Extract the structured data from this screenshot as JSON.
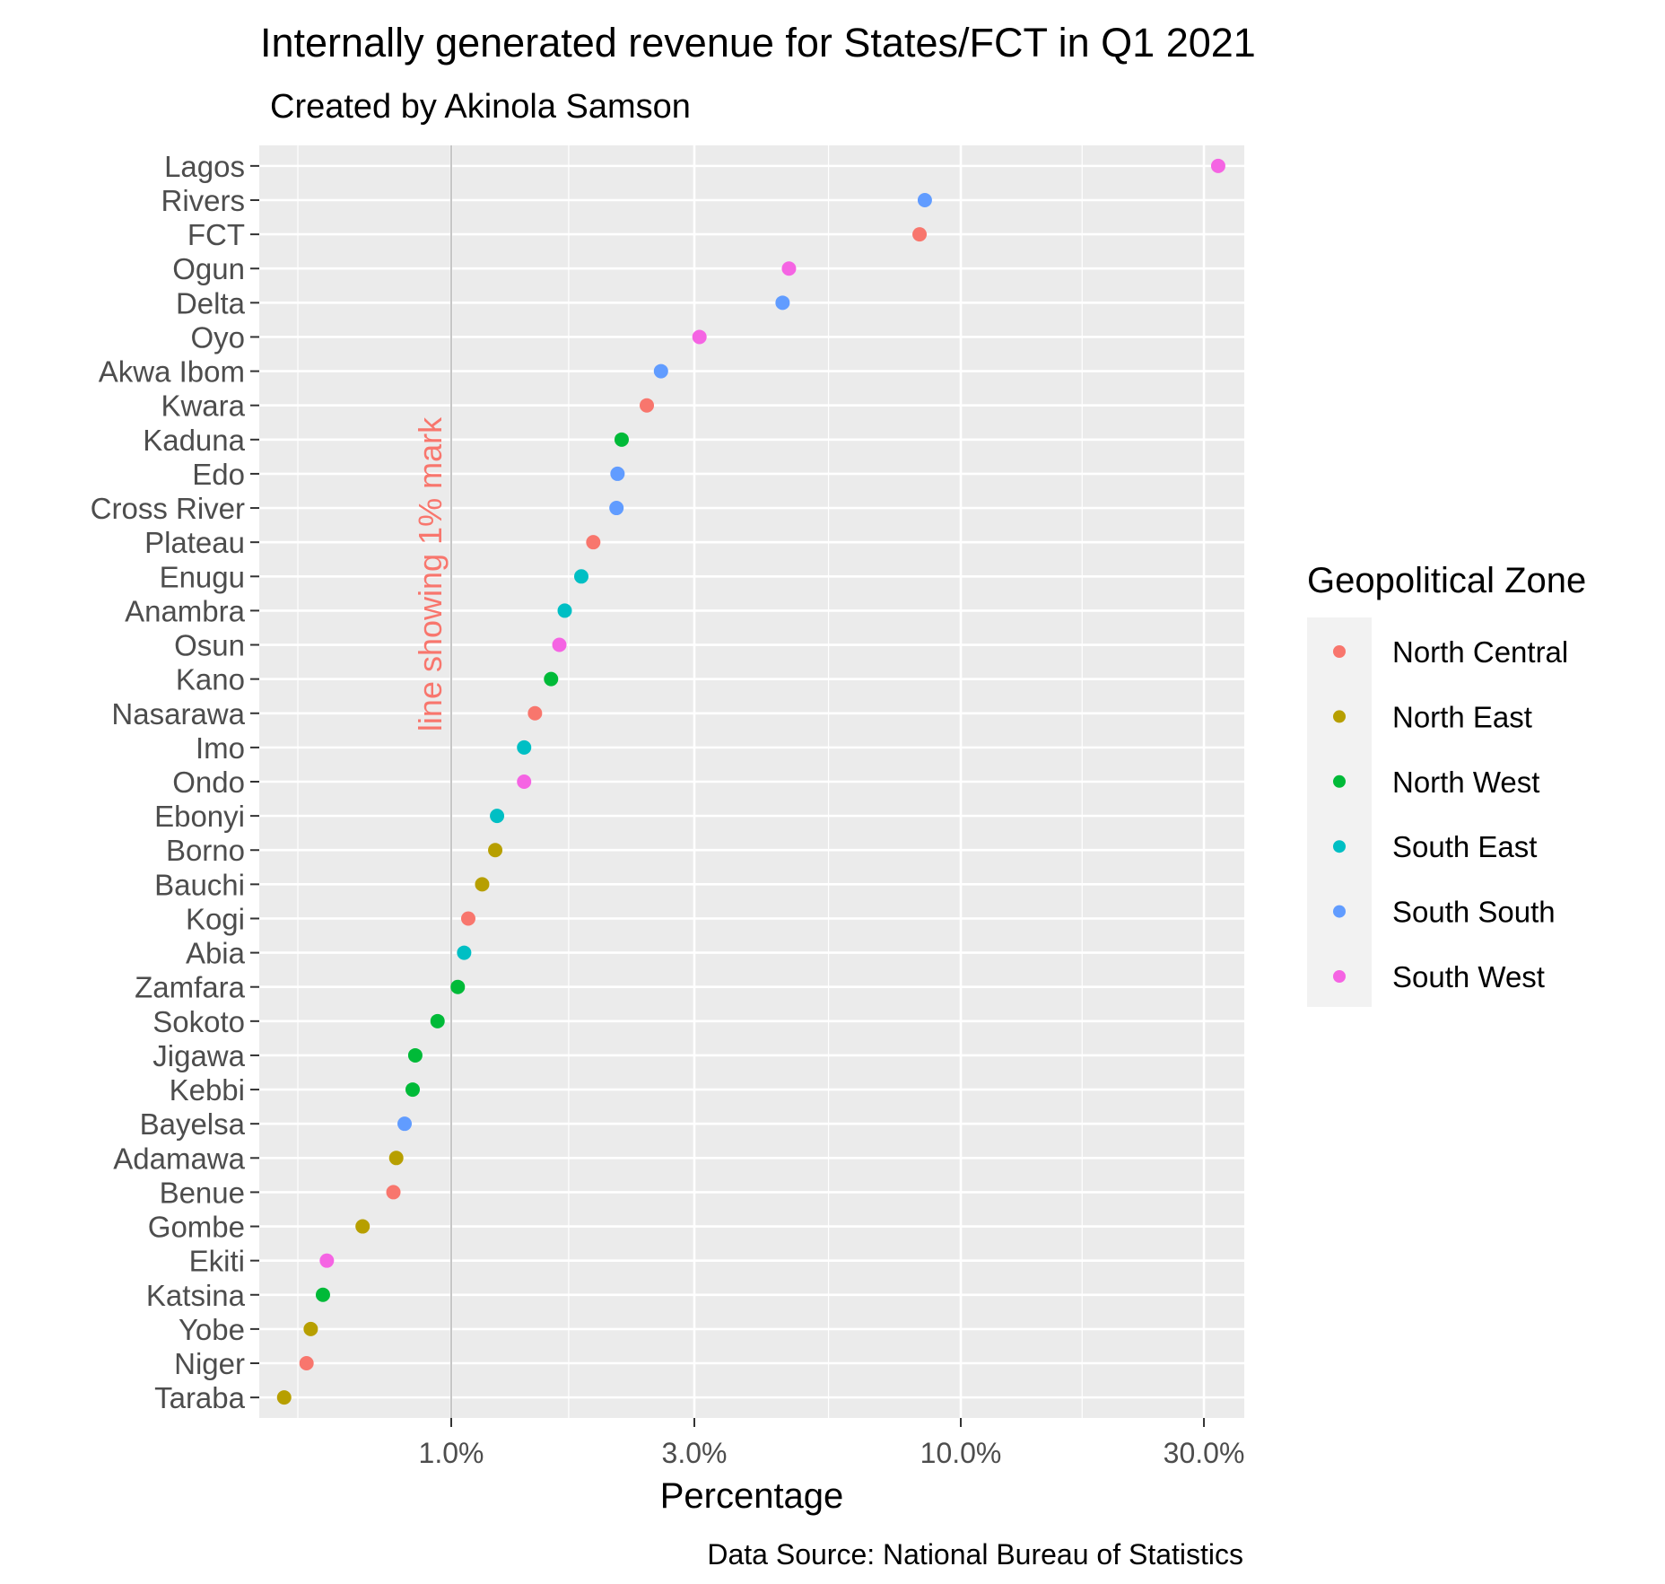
{
  "chart_data": {
    "type": "scatter",
    "title": "Internally generated revenue for States/FCT in Q1 2021",
    "subtitle": "Created by Akinola Samson",
    "xlabel": "Percentage",
    "ylabel": "",
    "caption": "Data Source: National Bureau of Statistics",
    "x_scale": "log10",
    "xlim": [
      0.42,
      36
    ],
    "x_ticks": [
      {
        "value": 1.0,
        "label": "1.0%"
      },
      {
        "value": 3.0,
        "label": "3.0%"
      },
      {
        "value": 10.0,
        "label": "10.0%"
      },
      {
        "value": 30.0,
        "label": "30.0%"
      }
    ],
    "x_minor_ticks": [
      0.5,
      1.7,
      5.5,
      17.3
    ],
    "reference_line": {
      "x": 1.0,
      "label": "line showing 1% mark",
      "color": "#F8766D"
    },
    "grid": true,
    "legend": {
      "title": "Geopolitical Zone",
      "position": "right"
    },
    "zones": [
      {
        "name": "North Central",
        "color": "#F8766D"
      },
      {
        "name": "North East",
        "color": "#B79F00"
      },
      {
        "name": "North West",
        "color": "#00BA38"
      },
      {
        "name": "South East",
        "color": "#00BFC4"
      },
      {
        "name": "South South",
        "color": "#619CFF"
      },
      {
        "name": "South West",
        "color": "#F564E3"
      }
    ],
    "points": [
      {
        "state": "Lagos",
        "value": 32.0,
        "zone": "South West"
      },
      {
        "state": "Rivers",
        "value": 8.5,
        "zone": "South South"
      },
      {
        "state": "FCT",
        "value": 8.3,
        "zone": "North Central"
      },
      {
        "state": "Ogun",
        "value": 4.6,
        "zone": "South West"
      },
      {
        "state": "Delta",
        "value": 4.47,
        "zone": "South South"
      },
      {
        "state": "Oyo",
        "value": 3.07,
        "zone": "South West"
      },
      {
        "state": "Akwa Ibom",
        "value": 2.58,
        "zone": "South South"
      },
      {
        "state": "Kwara",
        "value": 2.42,
        "zone": "North Central"
      },
      {
        "state": "Kaduna",
        "value": 2.16,
        "zone": "North West"
      },
      {
        "state": "Edo",
        "value": 2.12,
        "zone": "South South"
      },
      {
        "state": "Cross River",
        "value": 2.11,
        "zone": "South South"
      },
      {
        "state": "Plateau",
        "value": 1.9,
        "zone": "North Central"
      },
      {
        "state": "Enugu",
        "value": 1.8,
        "zone": "South East"
      },
      {
        "state": "Anambra",
        "value": 1.67,
        "zone": "South East"
      },
      {
        "state": "Osun",
        "value": 1.63,
        "zone": "South West"
      },
      {
        "state": "Kano",
        "value": 1.57,
        "zone": "North West"
      },
      {
        "state": "Nasarawa",
        "value": 1.46,
        "zone": "North Central"
      },
      {
        "state": "Imo",
        "value": 1.39,
        "zone": "South East"
      },
      {
        "state": "Ondo",
        "value": 1.39,
        "zone": "South West"
      },
      {
        "state": "Ebonyi",
        "value": 1.23,
        "zone": "South East"
      },
      {
        "state": "Borno",
        "value": 1.22,
        "zone": "North East"
      },
      {
        "state": "Bauchi",
        "value": 1.15,
        "zone": "North East"
      },
      {
        "state": "Kogi",
        "value": 1.08,
        "zone": "North Central"
      },
      {
        "state": "Abia",
        "value": 1.06,
        "zone": "South East"
      },
      {
        "state": "Zamfara",
        "value": 1.03,
        "zone": "North West"
      },
      {
        "state": "Sokoto",
        "value": 0.94,
        "zone": "North West"
      },
      {
        "state": "Jigawa",
        "value": 0.85,
        "zone": "North West"
      },
      {
        "state": "Kebbi",
        "value": 0.84,
        "zone": "North West"
      },
      {
        "state": "Bayelsa",
        "value": 0.81,
        "zone": "South South"
      },
      {
        "state": "Adamawa",
        "value": 0.78,
        "zone": "North East"
      },
      {
        "state": "Benue",
        "value": 0.77,
        "zone": "North Central"
      },
      {
        "state": "Gombe",
        "value": 0.67,
        "zone": "North East"
      },
      {
        "state": "Ekiti",
        "value": 0.57,
        "zone": "South West"
      },
      {
        "state": "Katsina",
        "value": 0.56,
        "zone": "North West"
      },
      {
        "state": "Yobe",
        "value": 0.53,
        "zone": "North East"
      },
      {
        "state": "Niger",
        "value": 0.52,
        "zone": "North Central"
      },
      {
        "state": "Taraba",
        "value": 0.47,
        "zone": "North East"
      }
    ]
  }
}
